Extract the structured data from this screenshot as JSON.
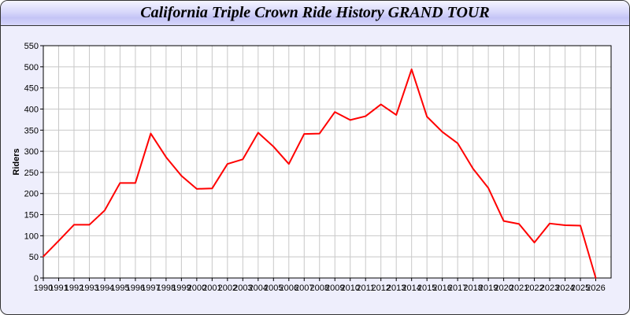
{
  "chart_data": {
    "type": "line",
    "title": "California Triple Crown Ride History GRAND TOUR",
    "xlabel": "",
    "ylabel": "Riders",
    "xlim": [
      1990,
      2027
    ],
    "ylim": [
      0,
      550
    ],
    "yticks": [
      0,
      50,
      100,
      150,
      200,
      250,
      300,
      350,
      400,
      450,
      500,
      550
    ],
    "grid": true,
    "line_color": "#ff0000",
    "x": [
      1990,
      1991,
      1992,
      1993,
      1994,
      1995,
      1996,
      1997,
      1998,
      1999,
      2000,
      2001,
      2002,
      2003,
      2004,
      2005,
      2006,
      2007,
      2008,
      2009,
      2010,
      2011,
      2012,
      2013,
      2014,
      2015,
      2016,
      2017,
      2018,
      2019,
      2020,
      2021,
      2022,
      2023,
      2024,
      2025,
      2026
    ],
    "series": [
      {
        "values": [
          51,
          88,
          126,
          126,
          160,
          225,
          225,
          342,
          286,
          242,
          211,
          212,
          270,
          281,
          344,
          311,
          270,
          341,
          342,
          393,
          374,
          383,
          411,
          386,
          494,
          382,
          346,
          319,
          259,
          213,
          135,
          128,
          84,
          129,
          125,
          124,
          0
        ]
      }
    ]
  }
}
